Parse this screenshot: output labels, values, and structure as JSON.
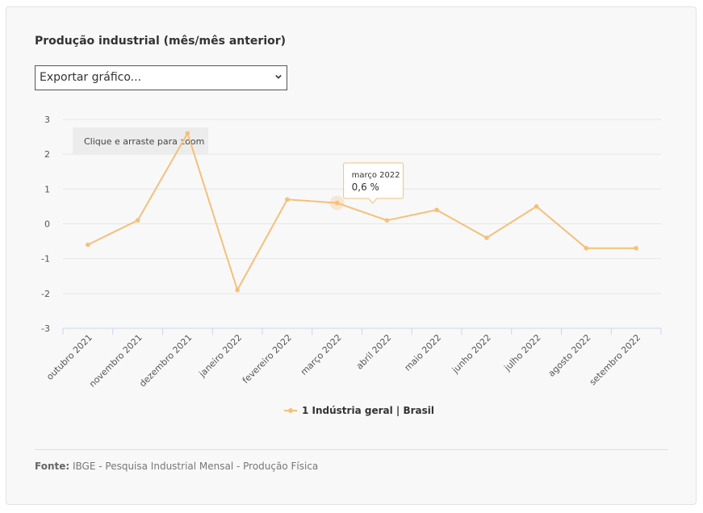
{
  "header": {
    "title": "Produção industrial (mês/mês anterior)"
  },
  "export_select": {
    "selected": "Exportar gráfico..."
  },
  "zoom_hint": "Clique e arraste para zoom",
  "tooltip": {
    "label": "março 2022",
    "value": "0,6 %"
  },
  "footer": {
    "source_label": "Fonte:",
    "source_text": " IBGE - Pesquisa Industrial Mensal - Produção Física"
  },
  "chart_data": {
    "type": "line",
    "categories": [
      "outubro 2021",
      "novembro 2021",
      "dezembro 2021",
      "janeiro 2022",
      "fevereiro 2022",
      "março 2022",
      "abril 2022",
      "maio 2022",
      "junho 2022",
      "julho 2022",
      "agosto 2022",
      "setembro 2022"
    ],
    "series": [
      {
        "name": "1 Indústria geral | Brasil",
        "values": [
          -0.6,
          0.1,
          2.6,
          -1.9,
          0.7,
          0.6,
          0.1,
          0.4,
          -0.4,
          0.5,
          -0.7,
          -0.7
        ]
      }
    ],
    "ylim": [
      -3,
      3
    ],
    "yticks": [
      "3",
      "2",
      "1",
      "0",
      "-1",
      "-2",
      "-3"
    ],
    "grid": true,
    "legend": "bottom-center",
    "color": "#f5c07a",
    "highlight_index": 5
  }
}
